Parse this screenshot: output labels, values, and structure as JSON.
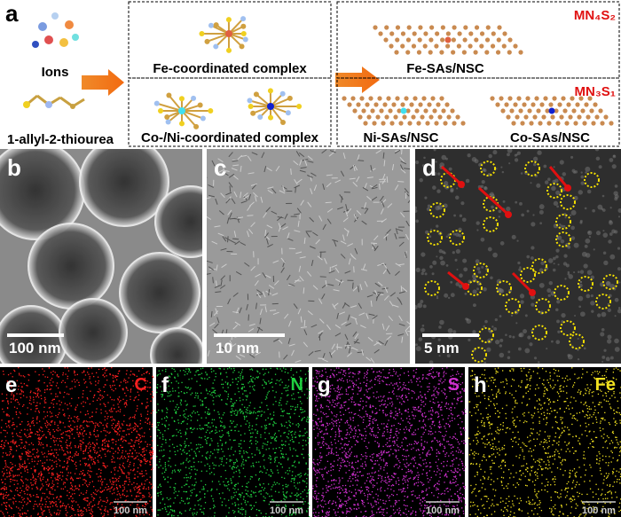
{
  "panel_a": {
    "label": "a",
    "ions": "Ions",
    "ligand": "1-allyl-2-thiourea",
    "fe_complex": "Fe-coordinated complex",
    "coni_complex": "Co-/Ni-coordinated complex",
    "fe_product": "Fe-SAs/NSC",
    "fe_motif": "MN₄S₂",
    "ni_product": "Ni-SAs/NSC",
    "co_product": "Co-SAs/NSC",
    "coni_motif": "MN₃S₁"
  },
  "panels": [
    {
      "label": "b",
      "scale_bar": "100 nm"
    },
    {
      "label": "c",
      "scale_bar": "10 nm"
    },
    {
      "label": "d",
      "scale_bar": "5 nm"
    }
  ],
  "maps": [
    {
      "label": "e",
      "element": "C",
      "scale_bar": "100 nm"
    },
    {
      "label": "f",
      "element": "N",
      "scale_bar": "100 nm"
    },
    {
      "label": "g",
      "element": "S",
      "scale_bar": "100 nm"
    },
    {
      "label": "h",
      "element": "Fe",
      "scale_bar": "100 nm"
    }
  ]
}
